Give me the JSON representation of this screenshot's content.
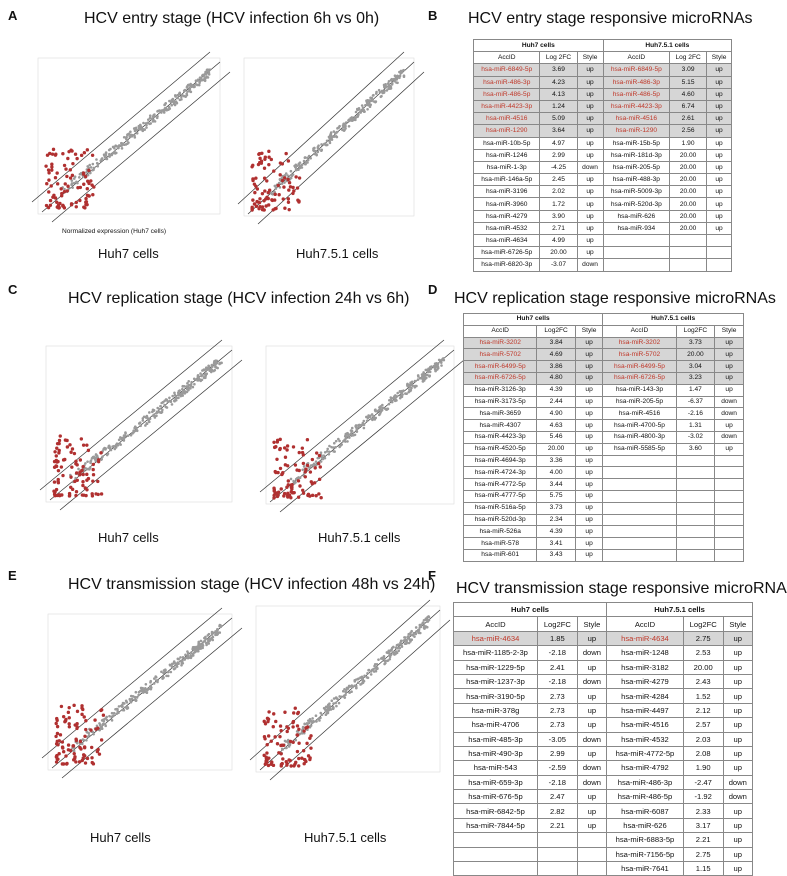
{
  "panels": {
    "A": {
      "letter": "A",
      "title": "HCV entry stage (HCV infection 6h vs 0h)",
      "left_label": "Huh7 cells",
      "right_label": "Huh7.5.1 cells",
      "xaxis_label": "Normalized expression (Huh7 cells)"
    },
    "B": {
      "letter": "B",
      "title": "HCV entry stage responsive microRNAs"
    },
    "C": {
      "letter": "C",
      "title": "HCV replication stage (HCV infection 24h vs 6h)",
      "left_label": "Huh7 cells",
      "right_label": "Huh7.5.1 cells"
    },
    "D": {
      "letter": "D",
      "title": "HCV replication stage responsive microRNAs"
    },
    "E": {
      "letter": "E",
      "title": "HCV transmission stage (HCV infection 48h vs 24h)",
      "left_label": "Huh7 cells",
      "right_label": "Huh7.5.1 cells"
    },
    "F": {
      "letter": "F",
      "title": "HCV transmission stage responsive microRNAs"
    }
  },
  "colors": {
    "red": "#c0392b",
    "highlight": "#d6d6d6",
    "gray_points": "#9a9a9a"
  },
  "tables": {
    "B": {
      "groups": [
        "Huh7 cells",
        "Huh7.5.1 cells"
      ],
      "headers": [
        "AccID",
        "Log 2FC",
        "Style",
        "AccID",
        "Log 2FC",
        "Style"
      ],
      "highlight_rows": 6,
      "rows": [
        [
          "hsa-miR-6849-5p",
          "3.69",
          "up",
          "hsa-miR-6849-5p",
          "3.09",
          "up"
        ],
        [
          "hsa-miR-486-3p",
          "4.23",
          "up",
          "hsa-miR-486-3p",
          "5.15",
          "up"
        ],
        [
          "hsa-miR-486-5p",
          "4.13",
          "up",
          "hsa-miR-486-5p",
          "4.60",
          "up"
        ],
        [
          "hsa-miR-4423-3p",
          "1.24",
          "up",
          "hsa-miR-4423-3p",
          "6.74",
          "up"
        ],
        [
          "hsa-miR-4516",
          "5.09",
          "up",
          "hsa-miR-4516",
          "2.61",
          "up"
        ],
        [
          "hsa-miR-1290",
          "3.64",
          "up",
          "hsa-miR-1290",
          "2.56",
          "up"
        ],
        [
          "hsa-miR-10b-5p",
          "4.97",
          "up",
          "hsa-miR-15b-5p",
          "1.90",
          "up"
        ],
        [
          "hsa-miR-1246",
          "2.99",
          "up",
          "hsa-miR-181d-3p",
          "20.00",
          "up"
        ],
        [
          "hsa-miR-1-3p",
          "-4.25",
          "down",
          "hsa-miR-205-5p",
          "20.00",
          "up"
        ],
        [
          "hsa-miR-146a-5p",
          "2.45",
          "up",
          "hsa-miR-488-3p",
          "20.00",
          "up"
        ],
        [
          "hsa-miR-3196",
          "2.02",
          "up",
          "hsa-miR-5009-3p",
          "20.00",
          "up"
        ],
        [
          "hsa-miR-3960",
          "1.72",
          "up",
          "hsa-miR-520d-3p",
          "20.00",
          "up"
        ],
        [
          "hsa-miR-4279",
          "3.90",
          "up",
          "hsa-miR-626",
          "20.00",
          "up"
        ],
        [
          "hsa-miR-4532",
          "2.71",
          "up",
          "hsa-miR-934",
          "20.00",
          "up"
        ],
        [
          "hsa-miR-4634",
          "4.99",
          "up",
          "",
          "",
          ""
        ],
        [
          "hsa-miR-6726-5p",
          "20.00",
          "up",
          "",
          "",
          ""
        ],
        [
          "hsa-miR-6820-3p",
          "-3.07",
          "down",
          "",
          "",
          ""
        ]
      ]
    },
    "D": {
      "groups": [
        "Huh7 cells",
        "Huh7.5.1 cells"
      ],
      "headers": [
        "AccID",
        "Log2FC",
        "Style",
        "AccID",
        "Log2FC",
        "Style"
      ],
      "highlight_rows": 4,
      "rows": [
        [
          "hsa-miR-3202",
          "3.84",
          "up",
          "hsa-miR-3202",
          "3.73",
          "up"
        ],
        [
          "hsa-miR-5702",
          "4.69",
          "up",
          "hsa-miR-5702",
          "20.00",
          "up"
        ],
        [
          "hsa-miR-6499-5p",
          "3.86",
          "up",
          "hsa-miR-6499-5p",
          "3.04",
          "up"
        ],
        [
          "hsa-miR-6726-5p",
          "4.80",
          "up",
          "hsa-miR-6726-5p",
          "3.23",
          "up"
        ],
        [
          "hsa-miR-3126-3p",
          "4.39",
          "up",
          "hsa-miR-143-3p",
          "1.47",
          "up"
        ],
        [
          "hsa-miR-3173-5p",
          "2.44",
          "up",
          "hsa-miR-205-5p",
          "-6.37",
          "down"
        ],
        [
          "hsa-miR-3659",
          "4.90",
          "up",
          "hsa-miR-4516",
          "-2.16",
          "down"
        ],
        [
          "hsa-miR-4307",
          "4.63",
          "up",
          "hsa-miR-4700-5p",
          "1.31",
          "up"
        ],
        [
          "hsa-miR-4423-3p",
          "5.46",
          "up",
          "hsa-miR-4800-3p",
          "-3.02",
          "down"
        ],
        [
          "hsa-miR-4520-5p",
          "20.00",
          "up",
          "hsa-miR-5585-5p",
          "3.60",
          "up"
        ],
        [
          "hsa-miR-4694-3p",
          "3.36",
          "up",
          "",
          "",
          ""
        ],
        [
          "hsa-miR-4724-3p",
          "4.00",
          "up",
          "",
          "",
          ""
        ],
        [
          "hsa-miR-4772-5p",
          "3.44",
          "up",
          "",
          "",
          ""
        ],
        [
          "hsa-miR-4777-5p",
          "5.75",
          "up",
          "",
          "",
          ""
        ],
        [
          "hsa-miR-516a-5p",
          "3.73",
          "up",
          "",
          "",
          ""
        ],
        [
          "hsa-miR-520d-3p",
          "2.34",
          "up",
          "",
          "",
          ""
        ],
        [
          "hsa-miR-526a",
          "4.39",
          "up",
          "",
          "",
          ""
        ],
        [
          "hsa-miR-578",
          "3.41",
          "up",
          "",
          "",
          ""
        ],
        [
          "hsa-miR-601",
          "3.43",
          "up",
          "",
          "",
          ""
        ]
      ]
    },
    "F": {
      "groups": [
        "Huh7 cells",
        "Huh7.5.1 cells"
      ],
      "headers": [
        "AccID",
        "Log2FC",
        "Style",
        "AccID",
        "Log2FC",
        "Style"
      ],
      "highlight_rows": 1,
      "rows": [
        [
          "hsa-miR-4634",
          "1.85",
          "up",
          "hsa-miR-4634",
          "2.75",
          "up"
        ],
        [
          "hsa-miR-1185-2-3p",
          "-2.18",
          "down",
          "hsa-miR-1248",
          "2.53",
          "up"
        ],
        [
          "hsa-miR-1229-5p",
          "2.41",
          "up",
          "hsa-miR-3182",
          "20.00",
          "up"
        ],
        [
          "hsa-miR-1237-3p",
          "-2.18",
          "down",
          "hsa-miR-4279",
          "2.43",
          "up"
        ],
        [
          "hsa-miR-3190-5p",
          "2.73",
          "up",
          "hsa-miR-4284",
          "1.52",
          "up"
        ],
        [
          "hsa-miR-378g",
          "2.73",
          "up",
          "hsa-miR-4497",
          "2.12",
          "up"
        ],
        [
          "hsa-miR-4706",
          "2.73",
          "up",
          "hsa-miR-4516",
          "2.57",
          "up"
        ],
        [
          "hsa-miR-485-3p",
          "-3.05",
          "down",
          "hsa-miR-4532",
          "2.03",
          "up"
        ],
        [
          "hsa-miR-490-3p",
          "2.99",
          "up",
          "hsa-miR-4772-5p",
          "2.08",
          "up"
        ],
        [
          "hsa-miR-543",
          "-2.59",
          "down",
          "hsa-miR-4792",
          "1.90",
          "up"
        ],
        [
          "hsa-miR-659-3p",
          "-2.18",
          "down",
          "hsa-miR-486-3p",
          "-2.47",
          "down"
        ],
        [
          "hsa-miR-676-5p",
          "2.47",
          "up",
          "hsa-miR-486-5p",
          "-1.92",
          "down"
        ],
        [
          "hsa-miR-6842-5p",
          "2.82",
          "up",
          "hsa-miR-6087",
          "2.33",
          "up"
        ],
        [
          "hsa-miR-7844-5p",
          "2.21",
          "up",
          "hsa-miR-626",
          "3.17",
          "up"
        ],
        [
          "",
          "",
          "",
          "hsa-miR-6883-5p",
          "2.21",
          "up"
        ],
        [
          "",
          "",
          "",
          "hsa-miR-7156-5p",
          "2.75",
          "up"
        ],
        [
          "",
          "",
          "",
          "hsa-miR-7641",
          "1.15",
          "up"
        ]
      ]
    }
  }
}
